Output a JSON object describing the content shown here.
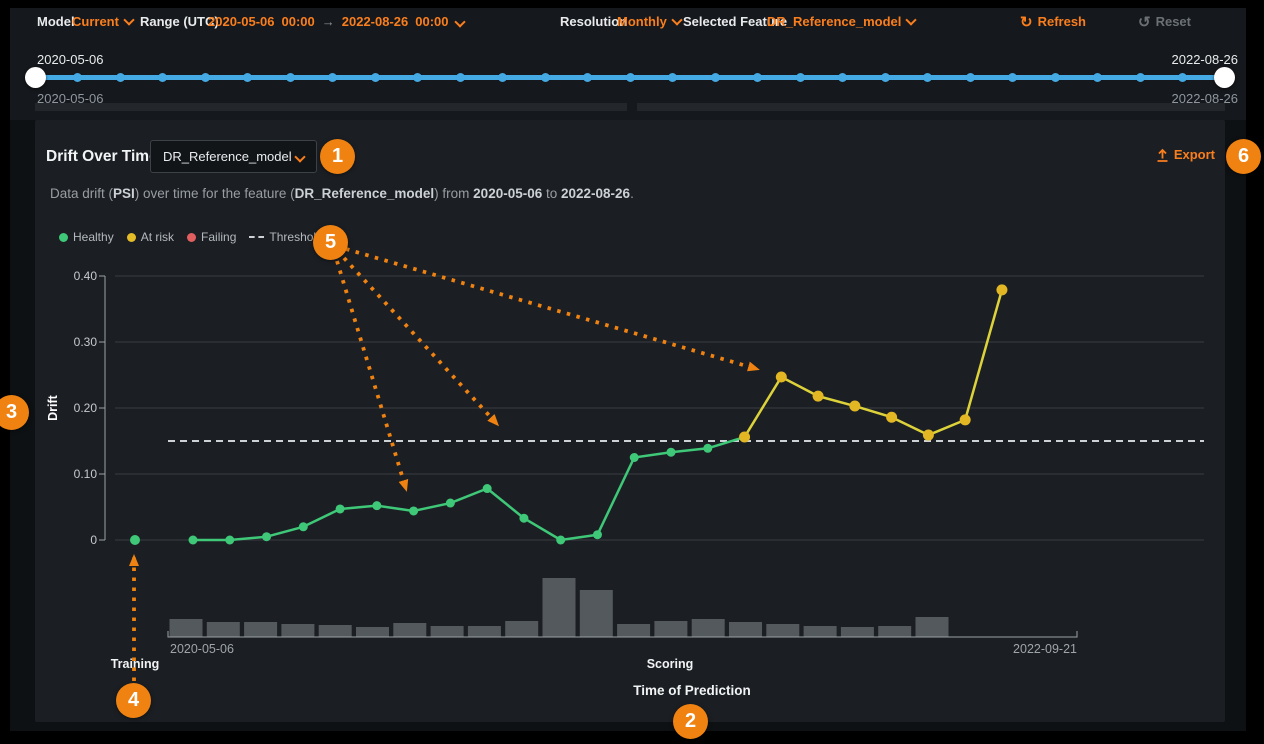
{
  "toolbar": {
    "model_label": "Model",
    "model_value": "Current",
    "range_label": "Range (UTC)",
    "range_start_date": "2020-05-06",
    "range_start_time": "00:00",
    "range_arrow": "→",
    "range_end_date": "2022-08-26",
    "range_end_time": "00:00",
    "resolution_label": "Resolution",
    "resolution_value": "Monthly",
    "feature_label": "Selected Feature",
    "feature_value": "DR_Reference_model",
    "refresh_icon": "↻",
    "refresh_label": "Refresh",
    "reset_icon": "↺",
    "reset_label": "Reset"
  },
  "timeline": {
    "start_date_top": "2020-05-06",
    "end_date_top": "2022-08-26",
    "start_date_bottom": "2020-05-06",
    "end_date_bottom": "2022-08-26",
    "intermediate_dot_count": 27
  },
  "panel": {
    "title": "Drift Over Time",
    "feature_dropdown_value": "DR_Reference_model",
    "export_label": "Export",
    "description_parts": {
      "t1": "Data drift (",
      "b1": "PSI",
      "t2": ") over time for the feature (",
      "b2": "DR_Reference_model",
      "t3": ") from ",
      "b3": "2020-05-06",
      "t4": " to ",
      "b4": "2022-08-26",
      "t5": "."
    },
    "legend": [
      {
        "label": "Healthy",
        "marker": "dot",
        "color": "#3ec878"
      },
      {
        "label": "At risk",
        "marker": "dot",
        "color": "#e3bc27"
      },
      {
        "label": "Failing",
        "marker": "dot",
        "color": "#e25f5f"
      },
      {
        "label": "Threshold",
        "marker": "dashed-line",
        "color": "#cdd2d6"
      }
    ]
  },
  "callouts": [
    "1",
    "2",
    "3",
    "4",
    "5",
    "6"
  ],
  "colors": {
    "orange": "#ef8211",
    "orange_text": "#fb7e1d",
    "blue": "#45a9e3",
    "healthy": "#3ec878",
    "at_risk_point": "#e3b624",
    "at_risk_line": "#ddd23a",
    "failing": "#e25f5f",
    "threshold": "#cdd2d6",
    "bars": "#54595e",
    "grid": "#383d42",
    "axis": "#9aa0a4",
    "tick_text": "#c6cacd",
    "x_end_text": "#a0a5a9",
    "section_text": "#f2f3f4"
  },
  "chart_data": {
    "type": "line",
    "title": "Drift Over Time",
    "xlabel": "Time of Prediction",
    "ylabel": "Drift",
    "ylim": [
      0,
      0.4
    ],
    "yticks": [
      0,
      0.1,
      0.2,
      0.3,
      0.4
    ],
    "ytick_labels": [
      "0",
      "0.10",
      "0.20",
      "0.30",
      "0.40"
    ],
    "threshold": 0.15,
    "x_axis_start_label": "2020-05-06",
    "x_axis_end_label": "2022-09-21",
    "section_label_training": "Training",
    "section_label_scoring": "Scoring",
    "training_point": {
      "value": 0,
      "status": "healthy"
    },
    "drift_values": [
      0,
      0,
      0.005,
      0.02,
      0.047,
      0.052,
      0.044,
      0.056,
      0.078,
      0.033,
      0,
      0.008,
      0.125,
      0.133,
      0.139,
      0.156,
      0.247,
      0.218,
      0.203,
      0.186,
      0.159,
      0.182,
      0.379
    ],
    "drift_statuses": [
      "healthy",
      "healthy",
      "healthy",
      "healthy",
      "healthy",
      "healthy",
      "healthy",
      "healthy",
      "healthy",
      "healthy",
      "healthy",
      "healthy",
      "healthy",
      "healthy",
      "healthy",
      "at-risk",
      "at-risk",
      "at-risk",
      "at-risk",
      "at-risk",
      "at-risk",
      "at-risk",
      "at-risk"
    ],
    "volume_bars": [
      18,
      15,
      15,
      13,
      12,
      10,
      14,
      11,
      11,
      16,
      59,
      47,
      13,
      16,
      18,
      15,
      13,
      11,
      10,
      11,
      20
    ],
    "legend_position": "top-left",
    "grid": true
  }
}
